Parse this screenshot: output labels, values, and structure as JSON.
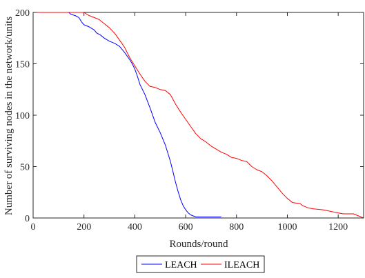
{
  "chart_data": {
    "type": "line",
    "title": "",
    "xlabel": "Rounds/round",
    "ylabel": "Number of surviving nodes in the network/units",
    "xlim": [
      0,
      1300
    ],
    "ylim": [
      0,
      200
    ],
    "xticks": [
      0,
      200,
      400,
      600,
      800,
      1000,
      1200
    ],
    "yticks": [
      0,
      50,
      100,
      150,
      200
    ],
    "grid": false,
    "legend_position": "bottom-center",
    "series": [
      {
        "name": "LEACH",
        "color": "#0000ff",
        "x": [
          0,
          140,
          150,
          165,
          180,
          190,
          200,
          220,
          240,
          250,
          265,
          280,
          300,
          320,
          340,
          360,
          380,
          390,
          400,
          410,
          420,
          440,
          460,
          480,
          500,
          520,
          530,
          540,
          550,
          560,
          570,
          575,
          580,
          590,
          600,
          610,
          620,
          640,
          660,
          680,
          700,
          720,
          740
        ],
        "y": [
          200,
          200,
          198,
          197,
          195,
          191,
          188,
          186,
          183,
          180,
          178,
          175,
          172,
          170,
          167,
          161,
          154,
          150,
          145,
          138,
          130,
          120,
          107,
          93,
          83,
          71,
          63,
          55,
          45,
          35,
          26,
          22,
          18,
          12,
          8,
          5,
          3,
          1,
          1,
          1,
          1,
          1,
          1
        ]
      },
      {
        "name": "ILEACH",
        "color": "#ff0000",
        "x": [
          0,
          200,
          220,
          240,
          260,
          280,
          300,
          320,
          340,
          360,
          380,
          400,
          420,
          440,
          460,
          480,
          500,
          520,
          540,
          560,
          580,
          600,
          620,
          640,
          660,
          680,
          700,
          720,
          740,
          760,
          780,
          800,
          820,
          840,
          860,
          880,
          900,
          920,
          940,
          960,
          980,
          1000,
          1020,
          1050,
          1060,
          1080,
          1100,
          1140,
          1180,
          1200,
          1220,
          1240,
          1260,
          1270,
          1280,
          1290,
          1300
        ],
        "y": [
          200,
          200,
          197,
          195,
          193,
          189,
          185,
          180,
          173,
          166,
          156,
          148,
          140,
          133,
          128,
          127,
          125,
          124,
          120,
          111,
          103,
          96,
          89,
          82,
          77,
          74,
          70,
          67,
          64,
          62,
          59,
          58,
          56,
          55,
          50,
          47,
          45,
          41,
          36,
          30,
          24,
          19,
          15,
          14,
          12,
          10,
          9,
          8,
          6,
          5,
          4,
          4,
          4,
          3,
          2,
          1,
          0
        ]
      }
    ]
  }
}
